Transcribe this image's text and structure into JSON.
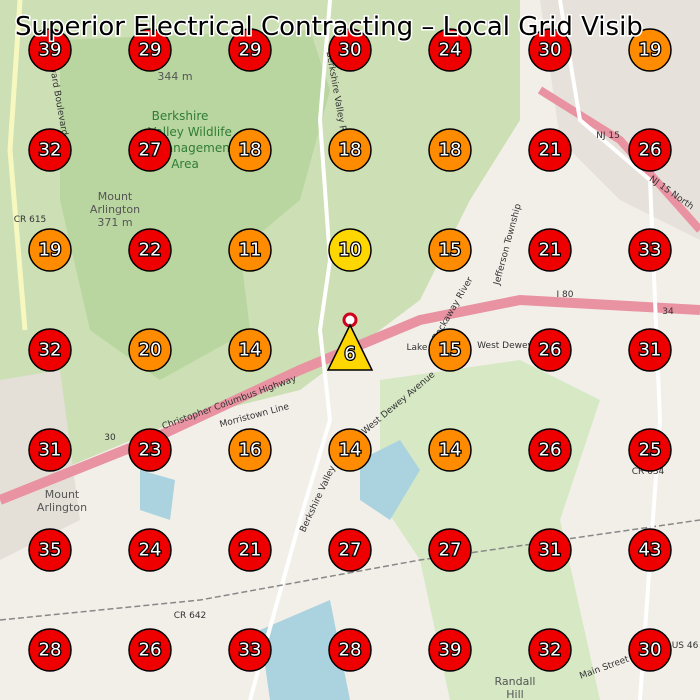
{
  "title": "Superior Electrical Contracting – Local Grid Visib",
  "map_labels": [
    "Berkshire",
    "Valley Wildlife",
    "Management",
    "Area",
    "Mount",
    "Arlington",
    "371 m",
    "344 m",
    "CR 615",
    "I 80",
    "NJ 15",
    "NJ 15 North",
    "Christopher Columbus Highway",
    "Morristown Line",
    "West Dewey Avenue",
    "West Dewey",
    "Lake",
    "CR 642",
    "CR 634",
    "Mount",
    "Arlington",
    "Randall",
    "Hill",
    "Main Street",
    "US 46",
    "Jefferson Township",
    "Berkshire Valley Road",
    "Berkshire Valley",
    "Howard Boulevard",
    "Rockaway River",
    "30",
    "34"
  ],
  "grid": {
    "rows": [
      [
        {
          "value": 39,
          "color": "#ee0000",
          "shape": "circle"
        },
        {
          "value": 29,
          "color": "#ee0000",
          "shape": "circle"
        },
        {
          "value": 29,
          "color": "#ee0000",
          "shape": "circle"
        },
        {
          "value": 30,
          "color": "#ee0000",
          "shape": "circle"
        },
        {
          "value": 24,
          "color": "#ee0000",
          "shape": "circle"
        },
        {
          "value": 30,
          "color": "#ee0000",
          "shape": "circle"
        },
        {
          "value": 19,
          "color": "#ff8c00",
          "shape": "circle"
        }
      ],
      [
        {
          "value": 32,
          "color": "#ee0000",
          "shape": "circle"
        },
        {
          "value": 27,
          "color": "#ee0000",
          "shape": "circle"
        },
        {
          "value": 18,
          "color": "#ff8c00",
          "shape": "circle"
        },
        {
          "value": 18,
          "color": "#ff8c00",
          "shape": "circle"
        },
        {
          "value": 18,
          "color": "#ff8c00",
          "shape": "circle"
        },
        {
          "value": 21,
          "color": "#ee0000",
          "shape": "circle"
        },
        {
          "value": 26,
          "color": "#ee0000",
          "shape": "circle"
        }
      ],
      [
        {
          "value": 19,
          "color": "#ff8c00",
          "shape": "circle"
        },
        {
          "value": 22,
          "color": "#ee0000",
          "shape": "circle"
        },
        {
          "value": 11,
          "color": "#ff8c00",
          "shape": "circle"
        },
        {
          "value": 10,
          "color": "#ffd700",
          "shape": "circle"
        },
        {
          "value": 15,
          "color": "#ff8c00",
          "shape": "circle"
        },
        {
          "value": 21,
          "color": "#ee0000",
          "shape": "circle"
        },
        {
          "value": 33,
          "color": "#ee0000",
          "shape": "circle"
        }
      ],
      [
        {
          "value": 32,
          "color": "#ee0000",
          "shape": "circle"
        },
        {
          "value": 20,
          "color": "#ff8c00",
          "shape": "circle"
        },
        {
          "value": 14,
          "color": "#ff8c00",
          "shape": "circle"
        },
        {
          "value": 6,
          "color": "#ffd700",
          "shape": "triangle"
        },
        {
          "value": 15,
          "color": "#ff8c00",
          "shape": "circle"
        },
        {
          "value": 26,
          "color": "#ee0000",
          "shape": "circle"
        },
        {
          "value": 31,
          "color": "#ee0000",
          "shape": "circle"
        }
      ],
      [
        {
          "value": 31,
          "color": "#ee0000",
          "shape": "circle"
        },
        {
          "value": 23,
          "color": "#ee0000",
          "shape": "circle"
        },
        {
          "value": 16,
          "color": "#ff8c00",
          "shape": "circle"
        },
        {
          "value": 14,
          "color": "#ff8c00",
          "shape": "circle"
        },
        {
          "value": 14,
          "color": "#ff8c00",
          "shape": "circle"
        },
        {
          "value": 26,
          "color": "#ee0000",
          "shape": "circle"
        },
        {
          "value": 25,
          "color": "#ee0000",
          "shape": "circle"
        }
      ],
      [
        {
          "value": 35,
          "color": "#ee0000",
          "shape": "circle"
        },
        {
          "value": 24,
          "color": "#ee0000",
          "shape": "circle"
        },
        {
          "value": 21,
          "color": "#ee0000",
          "shape": "circle"
        },
        {
          "value": 27,
          "color": "#ee0000",
          "shape": "circle"
        },
        {
          "value": 27,
          "color": "#ee0000",
          "shape": "circle"
        },
        {
          "value": 31,
          "color": "#ee0000",
          "shape": "circle"
        },
        {
          "value": 43,
          "color": "#ee0000",
          "shape": "circle"
        }
      ],
      [
        {
          "value": 28,
          "color": "#ee0000",
          "shape": "circle"
        },
        {
          "value": 26,
          "color": "#ee0000",
          "shape": "circle"
        },
        {
          "value": 33,
          "color": "#ee0000",
          "shape": "circle"
        },
        {
          "value": 28,
          "color": "#ee0000",
          "shape": "circle"
        },
        {
          "value": 39,
          "color": "#ee0000",
          "shape": "circle"
        },
        {
          "value": 32,
          "color": "#ee0000",
          "shape": "circle"
        },
        {
          "value": 30,
          "color": "#ee0000",
          "shape": "circle"
        }
      ]
    ]
  }
}
